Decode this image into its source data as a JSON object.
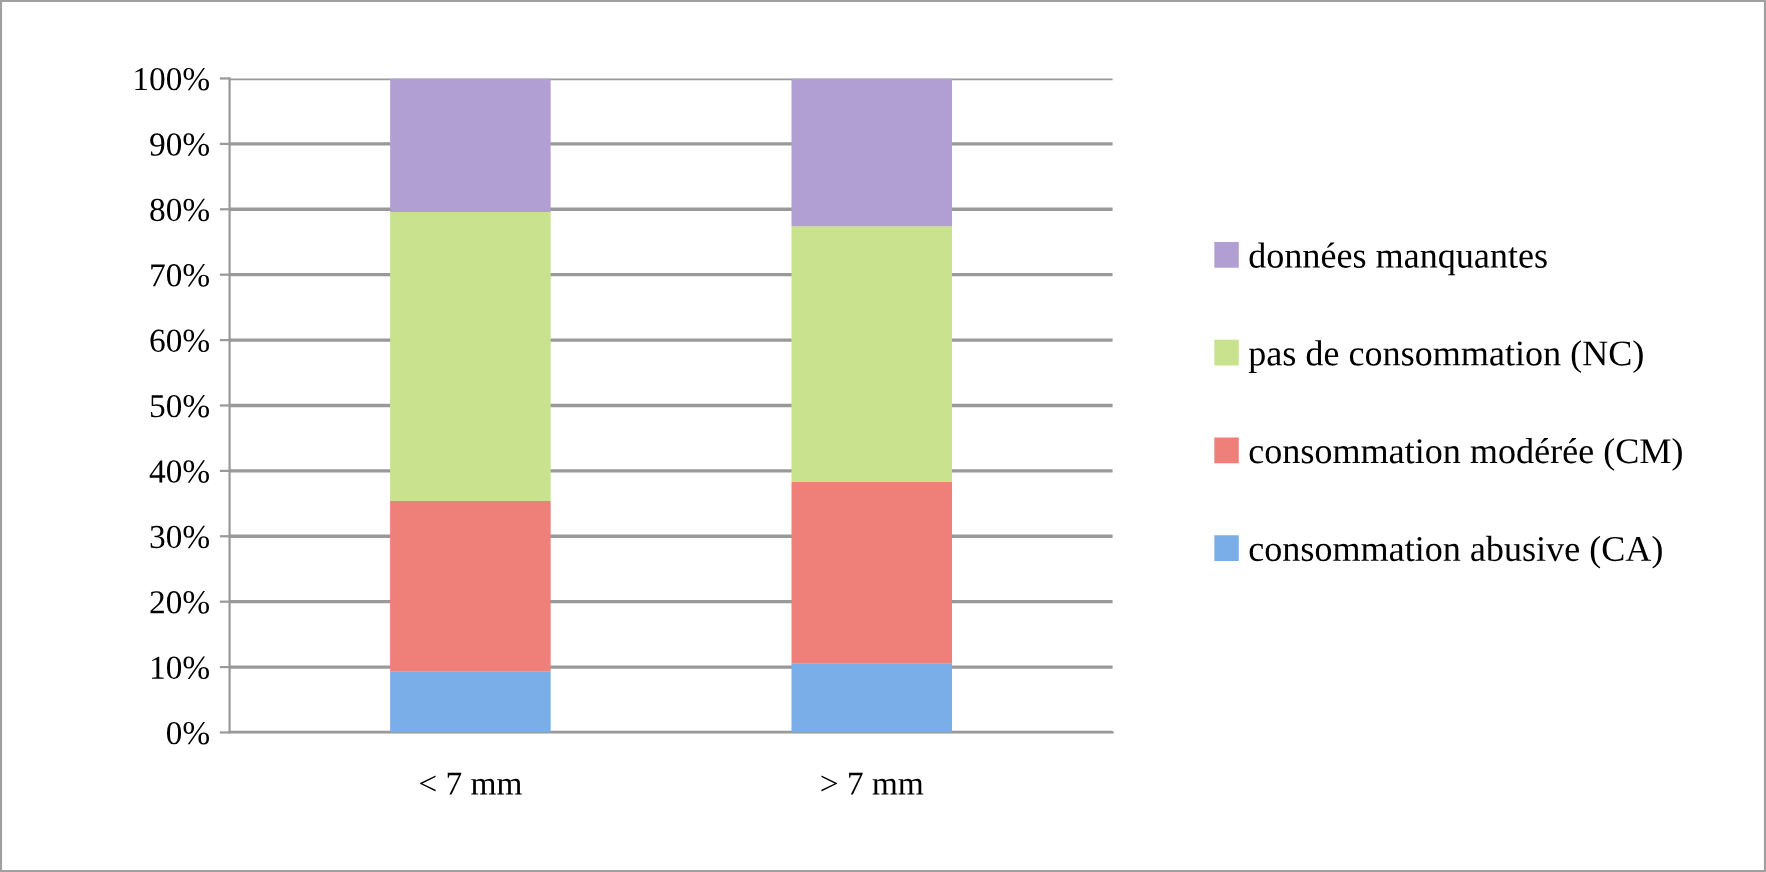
{
  "chart_data": {
    "type": "bar",
    "stacked": true,
    "categories": [
      "< 7 mm",
      "> 7 mm"
    ],
    "series": [
      {
        "name": "consommation abusive (CA)",
        "color": "#79aee8",
        "values": [
          9.3,
          10.5
        ]
      },
      {
        "name": "consommation modérée (CM)",
        "color": "#ee8079",
        "values": [
          26.1,
          27.8
        ]
      },
      {
        "name": "pas de consommation (NC)",
        "color": "#c8e28d",
        "values": [
          44.2,
          39.1
        ]
      },
      {
        "name": "données manquantes",
        "color": "#b19fd4",
        "values": [
          20.4,
          22.6
        ]
      }
    ],
    "ylim": [
      0,
      100
    ],
    "yticks": [
      {
        "value": 0,
        "label": "0%"
      },
      {
        "value": 10,
        "label": "10%"
      },
      {
        "value": 20,
        "label": "20%"
      },
      {
        "value": 30,
        "label": "30%"
      },
      {
        "value": 40,
        "label": "40%"
      },
      {
        "value": 50,
        "label": "50%"
      },
      {
        "value": 60,
        "label": "60%"
      },
      {
        "value": 70,
        "label": "70%"
      },
      {
        "value": 80,
        "label": "80%"
      },
      {
        "value": 90,
        "label": "90%"
      },
      {
        "value": 100,
        "label": "100%"
      }
    ],
    "grid": "y",
    "legend": "right"
  }
}
